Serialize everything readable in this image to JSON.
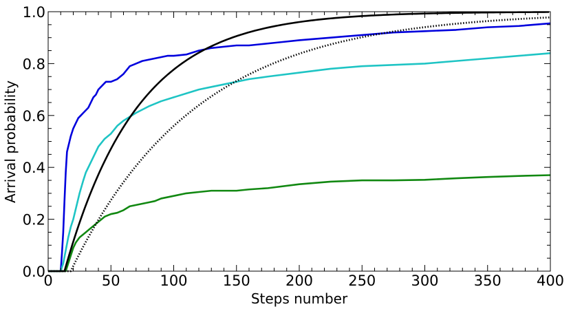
{
  "chart_data": {
    "type": "line",
    "title": "",
    "xlabel": "Steps number",
    "ylabel": "Arrival probability",
    "xlim": [
      0,
      400
    ],
    "ylim": [
      0,
      1.0
    ],
    "x_ticks": [
      0,
      50,
      100,
      150,
      200,
      250,
      300,
      350,
      400
    ],
    "x_tick_labels": [
      "0",
      "50",
      "100",
      "150",
      "200",
      "250",
      "300",
      "350",
      "400"
    ],
    "y_ticks": [
      0,
      0.2,
      0.4,
      0.6,
      0.8,
      1.0
    ],
    "y_tick_labels": [
      "0.0",
      "0.2",
      "0.4",
      "0.6",
      "0.8",
      "1.0"
    ],
    "grid": false,
    "series": [
      {
        "color": "#0000dd",
        "style": "solid",
        "x": [
          0,
          10,
          11,
          12,
          13,
          14,
          15,
          16,
          17,
          18,
          20,
          22,
          24,
          26,
          28,
          30,
          32,
          34,
          36,
          38,
          40,
          42,
          44,
          46,
          50,
          55,
          60,
          65,
          70,
          75,
          80,
          85,
          90,
          95,
          100,
          110,
          120,
          130,
          140,
          150,
          160,
          170,
          180,
          190,
          200,
          225,
          250,
          275,
          300,
          325,
          350,
          375,
          400
        ],
        "y": [
          0,
          0,
          0.07,
          0.15,
          0.27,
          0.38,
          0.46,
          0.48,
          0.5,
          0.52,
          0.55,
          0.57,
          0.59,
          0.6,
          0.61,
          0.62,
          0.63,
          0.65,
          0.67,
          0.68,
          0.7,
          0.71,
          0.72,
          0.73,
          0.73,
          0.74,
          0.76,
          0.79,
          0.8,
          0.81,
          0.815,
          0.82,
          0.825,
          0.83,
          0.83,
          0.835,
          0.85,
          0.86,
          0.865,
          0.87,
          0.87,
          0.875,
          0.88,
          0.885,
          0.89,
          0.9,
          0.91,
          0.92,
          0.925,
          0.93,
          0.94,
          0.945,
          0.955
        ]
      },
      {
        "color": "#1ec4c4",
        "style": "solid",
        "x": [
          0,
          10,
          12,
          14,
          16,
          18,
          20,
          22,
          25,
          28,
          30,
          35,
          40,
          45,
          50,
          55,
          60,
          70,
          80,
          90,
          100,
          110,
          120,
          130,
          140,
          150,
          160,
          175,
          200,
          225,
          250,
          275,
          300,
          325,
          350,
          375,
          400
        ],
        "y": [
          0,
          0,
          0.03,
          0.08,
          0.13,
          0.17,
          0.2,
          0.24,
          0.3,
          0.35,
          0.38,
          0.43,
          0.48,
          0.51,
          0.53,
          0.56,
          0.58,
          0.61,
          0.635,
          0.655,
          0.67,
          0.685,
          0.7,
          0.71,
          0.72,
          0.73,
          0.74,
          0.75,
          0.765,
          0.78,
          0.79,
          0.795,
          0.8,
          0.81,
          0.82,
          0.83,
          0.84
        ]
      },
      {
        "color": "#118811",
        "style": "solid",
        "x": [
          0,
          14,
          16,
          18,
          20,
          22,
          25,
          30,
          35,
          40,
          45,
          50,
          55,
          60,
          65,
          70,
          75,
          80,
          85,
          90,
          100,
          110,
          120,
          130,
          140,
          150,
          160,
          175,
          200,
          225,
          250,
          275,
          300,
          325,
          350,
          375,
          400
        ],
        "y": [
          0,
          0,
          0.03,
          0.06,
          0.09,
          0.11,
          0.13,
          0.15,
          0.17,
          0.19,
          0.21,
          0.22,
          0.225,
          0.235,
          0.25,
          0.255,
          0.26,
          0.265,
          0.27,
          0.28,
          0.29,
          0.3,
          0.305,
          0.31,
          0.31,
          0.31,
          0.315,
          0.32,
          0.335,
          0.345,
          0.35,
          0.35,
          0.352,
          0.358,
          0.363,
          0.367,
          0.37
        ]
      },
      {
        "color": "#000000",
        "style": "solid",
        "formula": "1 - exp(-(x - 13) / 58)",
        "x_start": 13
      },
      {
        "color": "#000000",
        "style": "dotted",
        "formula": "1 - exp(-(x - 18) / 100)",
        "x_start": 18
      }
    ]
  }
}
